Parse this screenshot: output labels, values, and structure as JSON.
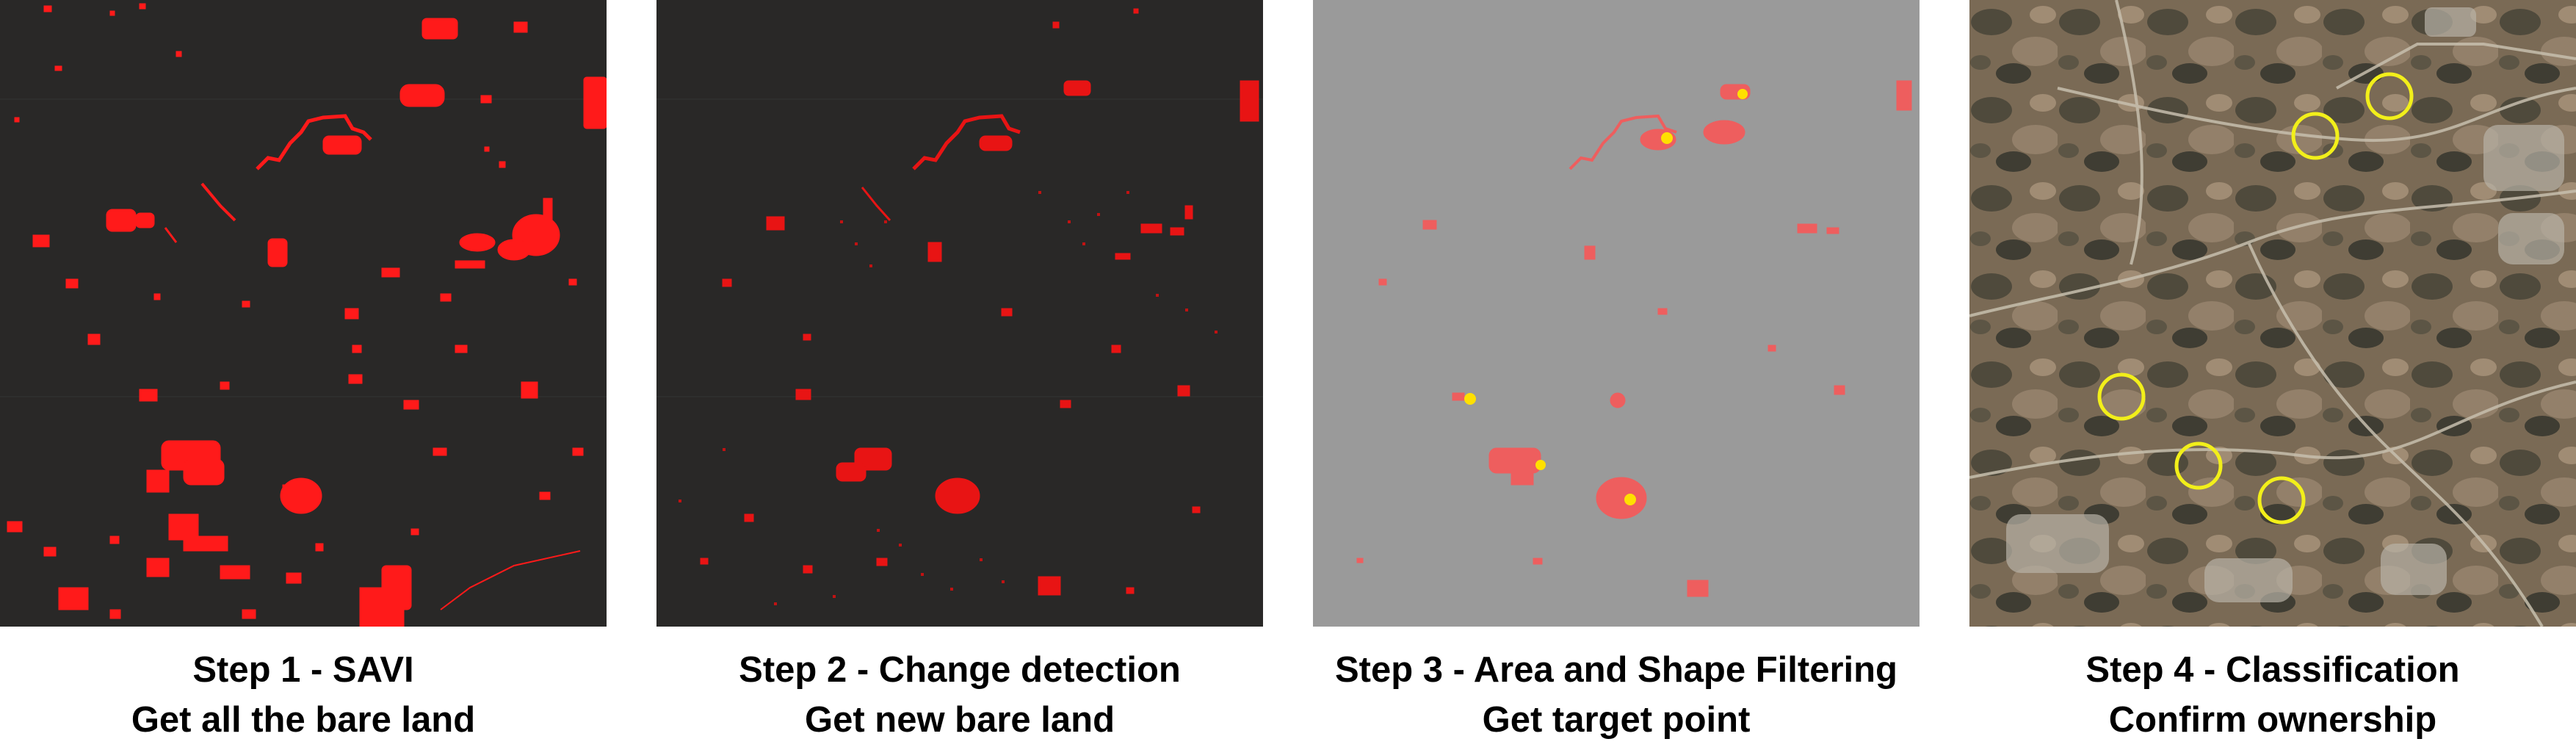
{
  "steps": [
    {
      "title": "Step 1 - SAVI",
      "subtitle": "Get all the bare land"
    },
    {
      "title": "Step 2 - Change detection",
      "subtitle": "Get new bare land"
    },
    {
      "title": "Step 3 - Area and Shape Filtering",
      "subtitle": "Get target point"
    },
    {
      "title": "Step 4 - Classification",
      "subtitle": "Confirm ownership"
    }
  ],
  "colors": {
    "dark_background": "#292827",
    "bare_land_red": "#ff1a1a",
    "filtered_gray": "#9a9a9a",
    "filtered_pink": "#ee5e5e",
    "target_yellow": "#ffe000",
    "circle_yellow": "#f2ef1a"
  },
  "icons": [
    "target-point-marker",
    "target-circle-marker"
  ]
}
